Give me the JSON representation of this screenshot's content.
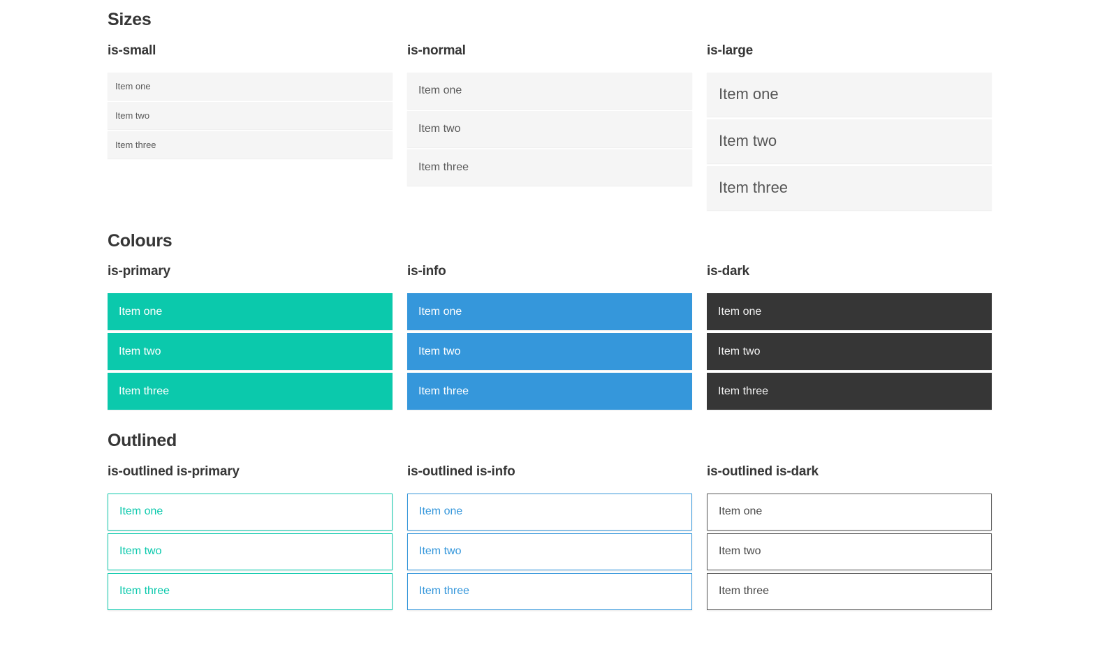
{
  "colors": {
    "primary": "#0bc9ac",
    "info": "#3597db",
    "dark": "#363636",
    "item_bg": "#f5f5f5",
    "item_text": "#595959",
    "heading_text": "#363636"
  },
  "sections": [
    {
      "title": "Sizes",
      "groups": [
        {
          "heading": "is-small",
          "items": [
            "Item one",
            "Item two",
            "Item three"
          ]
        },
        {
          "heading": "is-normal",
          "items": [
            "Item one",
            "Item two",
            "Item three"
          ]
        },
        {
          "heading": "is-large",
          "items": [
            "Item one",
            "Item two",
            "Item three"
          ]
        }
      ]
    },
    {
      "title": "Colours",
      "groups": [
        {
          "heading": "is-primary",
          "items": [
            "Item one",
            "Item two",
            "Item three"
          ]
        },
        {
          "heading": "is-info",
          "items": [
            "Item one",
            "Item two",
            "Item three"
          ]
        },
        {
          "heading": "is-dark",
          "items": [
            "Item one",
            "Item two",
            "Item three"
          ]
        }
      ]
    },
    {
      "title": "Outlined",
      "groups": [
        {
          "heading": "is-outlined is-primary",
          "items": [
            "Item one",
            "Item two",
            "Item three"
          ]
        },
        {
          "heading": "is-outlined is-info",
          "items": [
            "Item one",
            "Item two",
            "Item three"
          ]
        },
        {
          "heading": "is-outlined is-dark",
          "items": [
            "Item one",
            "Item two",
            "Item three"
          ]
        }
      ]
    }
  ]
}
